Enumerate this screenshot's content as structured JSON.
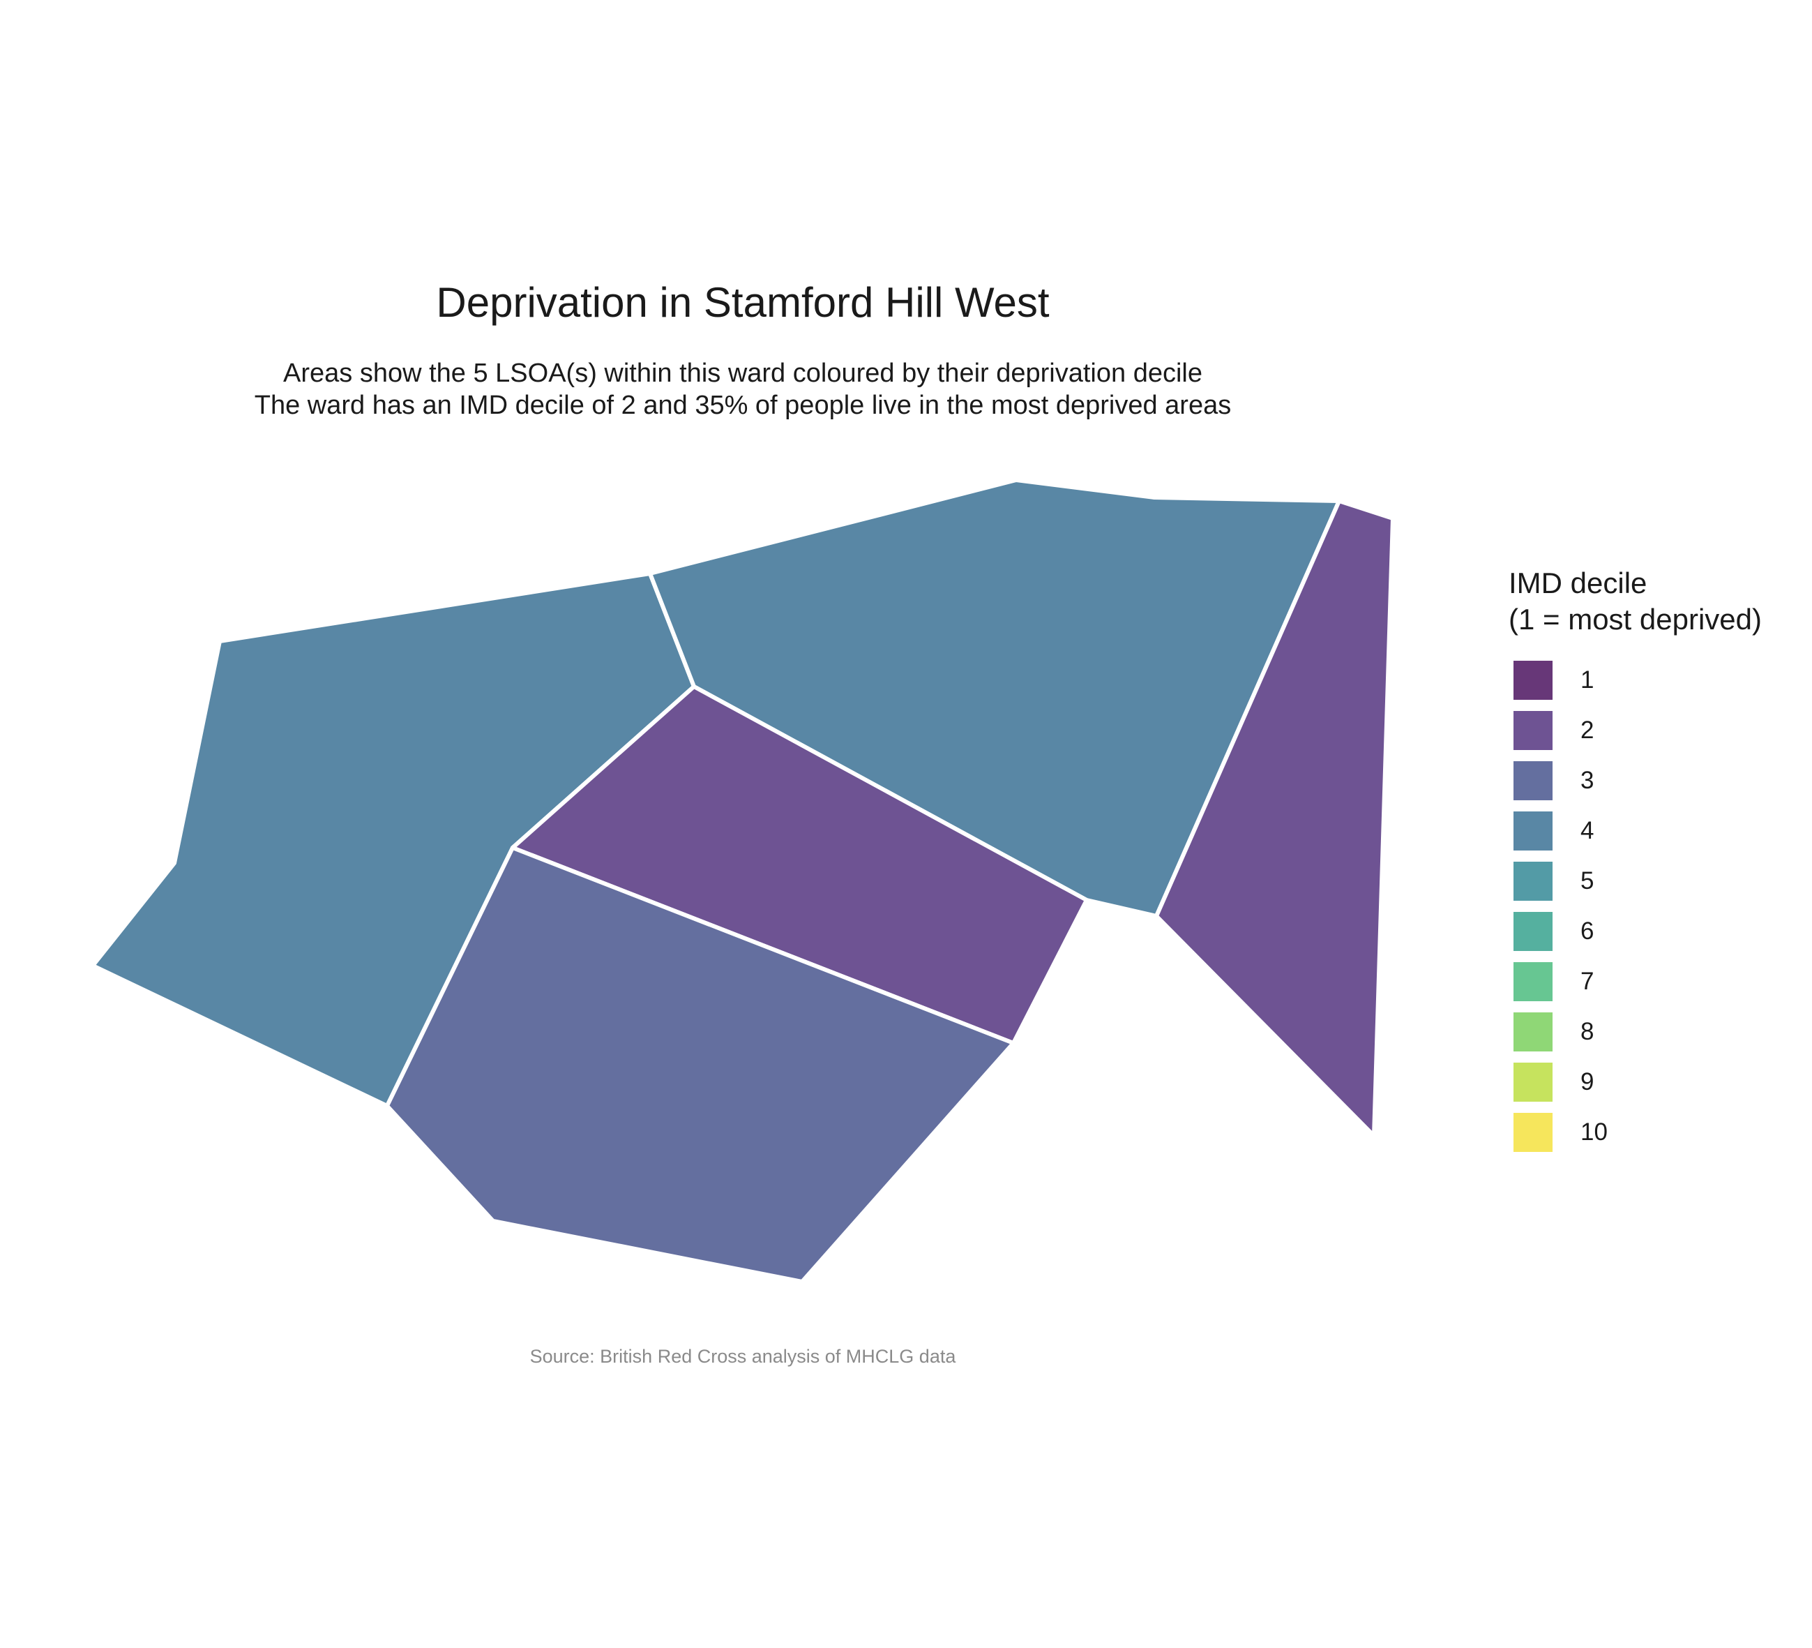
{
  "title": "Deprivation in Stamford Hill West",
  "subtitle": {
    "line1": "Areas show the 5 LSOA(s) within this ward coloured by their deprivation decile",
    "line2": "The ward has an IMD decile of 2 and 35% of people live in the most deprived areas"
  },
  "legend": {
    "title_line1": "IMD decile",
    "title_line2": "(1 = most deprived)",
    "items": [
      {
        "label": "1",
        "color": "#673778"
      },
      {
        "label": "2",
        "color": "#6e5393"
      },
      {
        "label": "3",
        "color": "#646f9f"
      },
      {
        "label": "4",
        "color": "#5987a5"
      },
      {
        "label": "5",
        "color": "#539ba6"
      },
      {
        "label": "6",
        "color": "#55b09f"
      },
      {
        "label": "7",
        "color": "#67c692"
      },
      {
        "label": "8",
        "color": "#8fd776"
      },
      {
        "label": "9",
        "color": "#c6e35e"
      },
      {
        "label": "10",
        "color": "#f6e65c"
      }
    ]
  },
  "areas": [
    {
      "id": "west",
      "decile": 4
    },
    {
      "id": "north",
      "decile": 4
    },
    {
      "id": "east",
      "decile": 2
    },
    {
      "id": "center",
      "decile": 2
    },
    {
      "id": "south",
      "decile": 3
    }
  ],
  "caption": "Source: British Red Cross analysis of MHCLG data"
}
